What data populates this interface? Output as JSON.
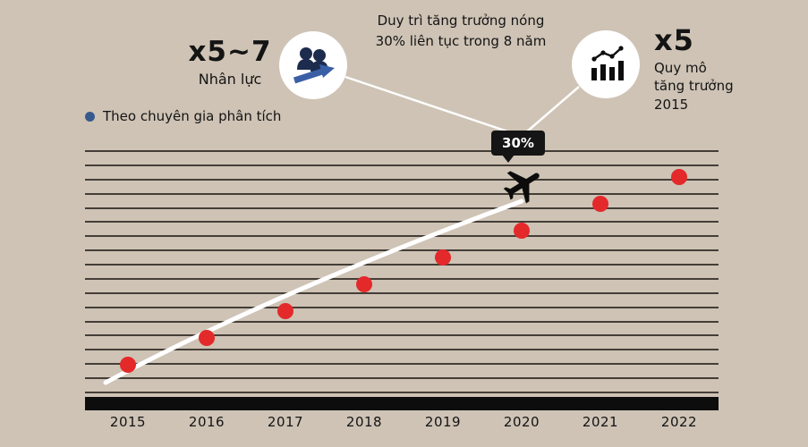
{
  "colors": {
    "background": "#cec3b5",
    "point": "#e4292b",
    "accent_blue": "#37598c",
    "trend_line": "#ffffff",
    "axis": "#0d0d0d"
  },
  "legend": {
    "label": "Theo chuyên gia phân tích"
  },
  "annotations": {
    "left": {
      "multiplier": "x5~7",
      "label": "Nhân lực"
    },
    "top_note": {
      "line1": "Duy trì tăng trưởng nóng",
      "line2": "30% liên tục trong 8 năm"
    },
    "right": {
      "multiplier": "x5",
      "lines": [
        "Quy mô",
        "tăng trưởng",
        "2015"
      ]
    },
    "badge_label": "30%"
  },
  "icons": {
    "team": "people-with-rising-arrow",
    "growth": "bar-chart-with-trend-dots",
    "plane": "airplane",
    "legend_marker": "blue-dot"
  },
  "chart_data": {
    "type": "scatter",
    "title": "",
    "categories": [
      "2015",
      "2016",
      "2017",
      "2018",
      "2019",
      "2020",
      "2021",
      "2022"
    ],
    "values": [
      1,
      2,
      3,
      4,
      5,
      6,
      7,
      8
    ],
    "xlabel": "",
    "ylabel": "",
    "ylim": [
      0,
      9
    ],
    "gridlines": 18,
    "grid": true,
    "legend_position": "top-left",
    "point_color": "#e4292b",
    "trend_annotation": "30% growth per year, 8 years (2015–2022)"
  }
}
